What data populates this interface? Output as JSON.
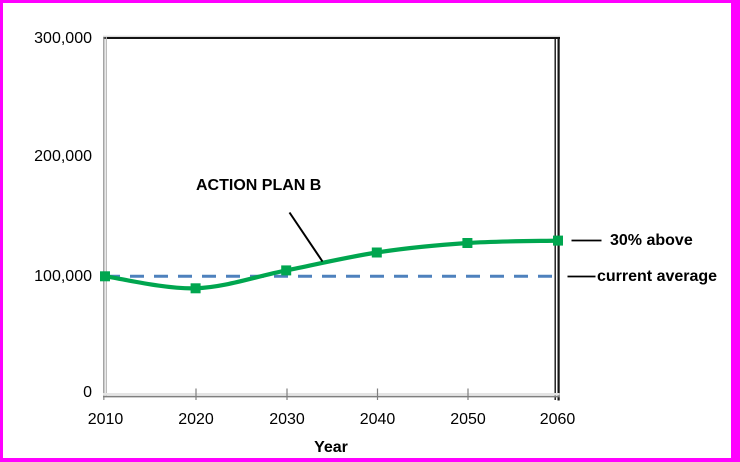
{
  "window": {
    "border_color": "#FF00FF",
    "background": "#FFFFFF"
  },
  "chart_data": {
    "type": "line",
    "title": "",
    "xlabel": "Year",
    "ylabel": "",
    "xlim": [
      2010,
      2060
    ],
    "ylim": [
      0,
      300000
    ],
    "grid": false,
    "legend_position": "none",
    "x": [
      2010,
      2020,
      2030,
      2040,
      2050,
      2060
    ],
    "x_tick_labels": [
      "2010",
      "2020",
      "2030",
      "2040",
      "2050",
      "2060"
    ],
    "y_tick_labels_desc": [
      "300,000",
      "200,000",
      "100,000",
      "0"
    ],
    "series": [
      {
        "name": "ACTION PLAN B",
        "line_style": "smooth-solid",
        "marker": "square",
        "color": "#00A64F",
        "values": [
          100000,
          90000,
          105000,
          120000,
          128000,
          130000
        ]
      },
      {
        "name": "current average",
        "line_style": "dashed",
        "marker": "none",
        "color": "#4E81BD",
        "values": [
          100000,
          100000,
          100000,
          100000,
          100000,
          100000
        ]
      }
    ],
    "annotations": {
      "series_label": "ACTION PLAN B",
      "above_label": "30% above",
      "average_label": "current average"
    }
  }
}
